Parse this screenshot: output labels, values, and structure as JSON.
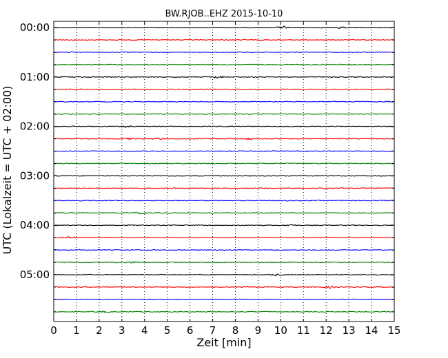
{
  "chart_data": {
    "type": "line",
    "title": "BW.RJOB..EHZ 2015-10-10",
    "xlabel": "Zeit  [min]",
    "ylabel": "UTC (Lokalzeit = UTC + 02:00)",
    "xlim": [
      0,
      15
    ],
    "x_ticks": [
      "0",
      "1",
      "2",
      "3",
      "4",
      "5",
      "6",
      "7",
      "8",
      "9",
      "10",
      "11",
      "12",
      "13",
      "14",
      "15"
    ],
    "y_ticks": [
      "00:00",
      "01:00",
      "02:00",
      "03:00",
      "04:00",
      "05:00"
    ],
    "grid": "vertical dotted lines at each minute",
    "trace_colors": [
      "#000000",
      "#ff0000",
      "#0000ff",
      "#007f00"
    ],
    "traces_per_hour": 4,
    "minutes_per_trace": 15,
    "trace_count": 24,
    "events": [
      {
        "trace": 0,
        "x": 10.1,
        "amp": 2.2
      },
      {
        "trace": 0,
        "x": 12.6,
        "amp": 1.4
      },
      {
        "trace": 4,
        "x": 7.3,
        "amp": 2.0
      },
      {
        "trace": 8,
        "x": 3.2,
        "amp": 2.0
      },
      {
        "trace": 9,
        "x": 3.3,
        "amp": 1.5
      },
      {
        "trace": 9,
        "x": 4.6,
        "amp": 1.6
      },
      {
        "trace": 9,
        "x": 8.6,
        "amp": 1.5
      },
      {
        "trace": 15,
        "x": 3.8,
        "amp": 1.5
      },
      {
        "trace": 16,
        "x": 10.4,
        "amp": 1.4
      },
      {
        "trace": 17,
        "x": 0.7,
        "amp": 1.8
      },
      {
        "trace": 19,
        "x": 3.5,
        "amp": 1.5
      },
      {
        "trace": 20,
        "x": 9.8,
        "amp": 1.4
      },
      {
        "trace": 21,
        "x": 12.2,
        "amp": 1.8
      },
      {
        "trace": 23,
        "x": 2.2,
        "amp": 1.4
      }
    ]
  }
}
